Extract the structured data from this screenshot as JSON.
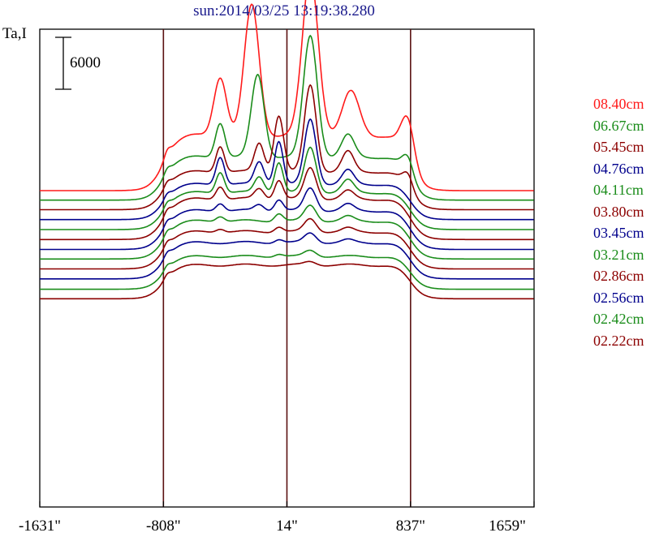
{
  "chart_data": {
    "type": "line",
    "title": "sun:2014/03/25 13:19:38.280",
    "ylabel": "Ta,I",
    "xlabel": "",
    "x_tick_labels": [
      "-1631\"",
      "-808\"",
      "14\"",
      "837\"",
      "1659\""
    ],
    "x_ticks": [
      -1631,
      -808,
      14,
      837,
      1659
    ],
    "xlim": [
      -1631,
      1659
    ],
    "vertical_lines_x": [
      -808,
      14,
      837
    ],
    "scale_bar_label": "6000",
    "scale_bar_value": 6000,
    "grid": false,
    "legend_placement": "right",
    "series": [
      {
        "name": "08.40cm",
        "color": "#ff1a1a"
      },
      {
        "name": "06.67cm",
        "color": "#1a8c1a"
      },
      {
        "name": "05.45cm",
        "color": "#8c0000"
      },
      {
        "name": "04.76cm",
        "color": "#00008c"
      },
      {
        "name": "04.11cm",
        "color": "#1a8c1a"
      },
      {
        "name": "03.80cm",
        "color": "#8c0000"
      },
      {
        "name": "03.45cm",
        "color": "#00008c"
      },
      {
        "name": "03.21cm",
        "color": "#1a8c1a"
      },
      {
        "name": "02.86cm",
        "color": "#8c0000"
      },
      {
        "name": "02.56cm",
        "color": "#00008c"
      },
      {
        "name": "02.42cm",
        "color": "#1a8c1a"
      },
      {
        "name": "02.22cm",
        "color": "#8c0000"
      }
    ],
    "profiles": [
      {
        "base": 0,
        "disk": 6400,
        "peaks": [
          [
            -430,
            6800,
            60
          ],
          [
            -220,
            15000,
            70
          ],
          [
            170,
            18500,
            75
          ],
          [
            440,
            5000,
            80
          ],
          [
            820,
            4500,
            60
          ]
        ]
      },
      {
        "base": -1100,
        "disk": 5000,
        "peaks": [
          [
            -430,
            4000,
            45
          ],
          [
            -180,
            9500,
            60
          ],
          [
            170,
            14000,
            65
          ],
          [
            420,
            2500,
            60
          ],
          [
            820,
            2000,
            50
          ]
        ]
      },
      {
        "base": -2200,
        "disk": 4400,
        "peaks": [
          [
            -430,
            3000,
            40
          ],
          [
            -170,
            3300,
            45
          ],
          [
            -40,
            6500,
            45
          ],
          [
            170,
            10000,
            55
          ],
          [
            420,
            2300,
            55
          ],
          [
            820,
            1500,
            45
          ]
        ]
      },
      {
        "base": -3350,
        "disk": 4100,
        "peaks": [
          [
            -430,
            3200,
            40
          ],
          [
            -170,
            2600,
            45
          ],
          [
            -40,
            5000,
            40
          ],
          [
            170,
            7500,
            55
          ],
          [
            420,
            1600,
            55
          ]
        ]
      },
      {
        "base": -4500,
        "disk": 4300,
        "peaks": [
          [
            -430,
            2400,
            40
          ],
          [
            -170,
            1800,
            45
          ],
          [
            -40,
            3500,
            40
          ],
          [
            170,
            5200,
            55
          ],
          [
            420,
            1400,
            55
          ]
        ]
      },
      {
        "base": -5650,
        "disk": 4700,
        "peaks": [
          [
            -430,
            1500,
            40
          ],
          [
            -170,
            1200,
            45
          ],
          [
            -40,
            2200,
            40
          ],
          [
            170,
            3600,
            55
          ],
          [
            420,
            900,
            55
          ]
        ]
      },
      {
        "base": -6800,
        "disk": 4500,
        "peaks": [
          [
            -430,
            900,
            40
          ],
          [
            -170,
            700,
            45
          ],
          [
            -40,
            1300,
            40
          ],
          [
            170,
            2600,
            55
          ],
          [
            420,
            700,
            55
          ]
        ]
      },
      {
        "base": -7900,
        "disk": 4400,
        "peaks": [
          [
            -430,
            600,
            40
          ],
          [
            -40,
            900,
            40
          ],
          [
            170,
            1800,
            55
          ],
          [
            420,
            500,
            55
          ]
        ]
      },
      {
        "base": -9050,
        "disk": 4300,
        "peaks": [
          [
            -430,
            400,
            40
          ],
          [
            -40,
            600,
            40
          ],
          [
            170,
            1500,
            55
          ],
          [
            420,
            400,
            55
          ]
        ]
      },
      {
        "base": -10200,
        "disk": 4200,
        "peaks": [
          [
            -40,
            400,
            40
          ],
          [
            170,
            1100,
            55
          ],
          [
            420,
            300,
            55
          ]
        ]
      },
      {
        "base": -11400,
        "disk": 3800,
        "peaks": [
          [
            -40,
            300,
            40
          ],
          [
            170,
            700,
            55
          ]
        ]
      },
      {
        "base": -12500,
        "disk": 3900,
        "peaks": [
          [
            170,
            400,
            55
          ]
        ]
      }
    ]
  }
}
